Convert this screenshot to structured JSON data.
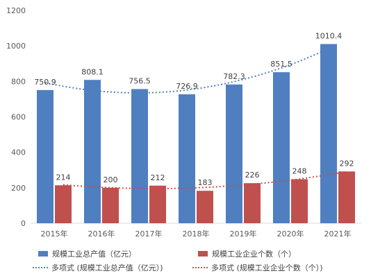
{
  "chart_data": {
    "type": "bar",
    "categories": [
      "2015年",
      "2016年",
      "2017年",
      "2018年",
      "2019年",
      "2020年",
      "2021年"
    ],
    "series": [
      {
        "name": "规模工业总产值（亿元）",
        "values": [
          750.9,
          808.1,
          756.5,
          726.9,
          782.3,
          851.5,
          1010.4
        ],
        "color": "#4F7FC0",
        "labels": [
          "750.9",
          "808.1",
          "756.5",
          "726.9",
          "782.3",
          "851.5",
          "1010.4"
        ]
      },
      {
        "name": "规模工业企业个数（个）",
        "values": [
          214,
          200,
          212,
          183,
          226,
          248,
          292
        ],
        "color": "#C0504D",
        "labels": [
          "214",
          "200",
          "212",
          "183",
          "226",
          "248",
          "292"
        ]
      }
    ],
    "trendlines": [
      {
        "name": "多项式 (规模工业总产值（亿元）)",
        "type": "polynomial",
        "series": 0,
        "color": "#4F7FC0"
      },
      {
        "name": "多项式 (规模工业企业个数（个）)",
        "type": "polynomial",
        "series": 1,
        "color": "#C0504D"
      }
    ],
    "yticks": [
      "0",
      "200",
      "400",
      "600",
      "800",
      "1000",
      "1200"
    ],
    "ylim": [
      0,
      1200
    ],
    "grid": false,
    "legend_position": "bottom"
  }
}
